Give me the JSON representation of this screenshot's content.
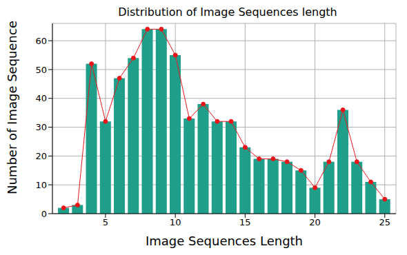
{
  "chart_data": {
    "type": "bar",
    "title": "Distribution of Image Sequences length",
    "x_label": "Image Sequences Length",
    "y_label": "Number of Image Sequences",
    "x": [
      2,
      3,
      4,
      5,
      6,
      7,
      8,
      9,
      10,
      11,
      12,
      13,
      14,
      15,
      16,
      17,
      18,
      19,
      20,
      21,
      22,
      23,
      24,
      25
    ],
    "series": [
      {
        "type": "bar",
        "color": "#1f9e89",
        "values": [
          2,
          3,
          52,
          32,
          47,
          54,
          64,
          64,
          55,
          33,
          38,
          32,
          32,
          23,
          19,
          19,
          18,
          15,
          9,
          18,
          36,
          18,
          11,
          5
        ]
      },
      {
        "type": "line",
        "color": "#e8161b",
        "marker": "circle",
        "values": [
          2,
          3,
          52,
          32,
          47,
          54,
          64,
          64,
          55,
          33,
          38,
          32,
          32,
          23,
          19,
          19,
          18,
          15,
          9,
          18,
          36,
          18,
          11,
          5
        ]
      }
    ],
    "xlim": [
      1.2,
      25.8
    ],
    "xticks": [
      5,
      10,
      15,
      20,
      25
    ],
    "ylim": [
      0,
      66
    ],
    "yticks": [
      0,
      10,
      20,
      30,
      40,
      50,
      60
    ],
    "grid": true
  }
}
